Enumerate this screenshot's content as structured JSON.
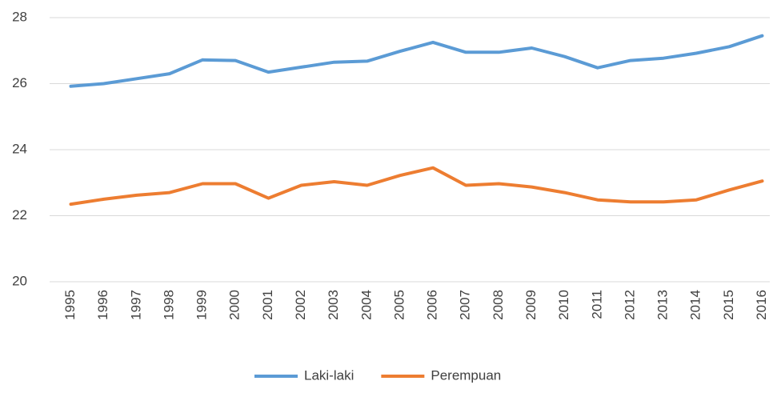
{
  "chart_data": {
    "type": "line",
    "categories": [
      "1995",
      "1996",
      "1997",
      "1998",
      "1999",
      "2000",
      "2001",
      "2002",
      "2003",
      "2004",
      "2005",
      "2006",
      "2007",
      "2008",
      "2009",
      "2010",
      "2011",
      "2012",
      "2013",
      "2014",
      "2015",
      "2016"
    ],
    "series": [
      {
        "name": "Laki-laki",
        "color": "#5b9bd5",
        "values": [
          25.92,
          26.0,
          26.15,
          26.3,
          26.72,
          26.7,
          26.35,
          26.5,
          26.65,
          26.68,
          26.98,
          27.25,
          26.95,
          26.95,
          27.08,
          26.82,
          26.48,
          26.7,
          26.77,
          26.92,
          27.12,
          27.45
        ]
      },
      {
        "name": "Perempuan",
        "color": "#ed7d31",
        "values": [
          22.35,
          22.5,
          22.62,
          22.7,
          22.97,
          22.97,
          22.53,
          22.92,
          23.03,
          22.92,
          23.22,
          23.45,
          22.92,
          22.97,
          22.87,
          22.7,
          22.48,
          22.42,
          22.42,
          22.48,
          22.78,
          23.05
        ]
      }
    ],
    "ylim": [
      20,
      28
    ],
    "yticks": [
      20,
      22,
      24,
      26,
      28
    ],
    "grid": true
  }
}
